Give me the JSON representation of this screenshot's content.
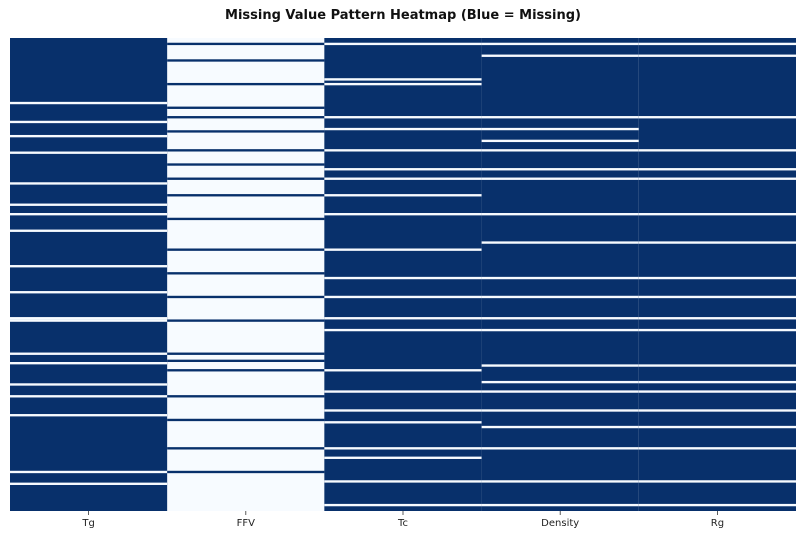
{
  "chart_data": {
    "type": "heatmap",
    "title": "Missing Value Pattern Heatmap (Blue = Missing)",
    "xlabel": "",
    "ylabel": "",
    "columns": [
      "Tg",
      "FFV",
      "Tc",
      "Density",
      "Rg"
    ],
    "rows": 200,
    "legend": "none",
    "colors": {
      "missing": "#08306b",
      "present": "#f7fbff"
    },
    "present_runs": [
      {
        "col": 0,
        "rows": [
          [
            27,
            27
          ],
          [
            35,
            35
          ],
          [
            41,
            41
          ],
          [
            48,
            48
          ],
          [
            61,
            61
          ],
          [
            70,
            70
          ],
          [
            74,
            74
          ],
          [
            81,
            81
          ],
          [
            96,
            96
          ],
          [
            107,
            107
          ],
          [
            118,
            118
          ],
          [
            119,
            119
          ],
          [
            133,
            133
          ],
          [
            137,
            137
          ],
          [
            146,
            146
          ],
          [
            151,
            151
          ],
          [
            159,
            159
          ],
          [
            183,
            183
          ],
          [
            188,
            188
          ]
        ]
      },
      {
        "col": 1,
        "rows": [
          [
            0,
            1
          ],
          [
            3,
            8
          ],
          [
            10,
            18
          ],
          [
            20,
            28
          ],
          [
            30,
            32
          ],
          [
            34,
            38
          ],
          [
            40,
            46
          ],
          [
            48,
            52
          ],
          [
            54,
            58
          ],
          [
            60,
            65
          ],
          [
            67,
            75
          ],
          [
            77,
            88
          ],
          [
            90,
            98
          ],
          [
            100,
            108
          ],
          [
            110,
            118
          ],
          [
            120,
            132
          ],
          [
            134,
            135
          ],
          [
            137,
            139
          ],
          [
            141,
            150
          ],
          [
            152,
            160
          ],
          [
            162,
            172
          ],
          [
            174,
            182
          ],
          [
            184,
            199
          ]
        ]
      },
      {
        "col": 2,
        "rows": [
          [
            2,
            2
          ],
          [
            17,
            17
          ],
          [
            19,
            19
          ],
          [
            33,
            33
          ],
          [
            38,
            38
          ],
          [
            47,
            47
          ],
          [
            55,
            55
          ],
          [
            59,
            59
          ],
          [
            66,
            66
          ],
          [
            74,
            74
          ],
          [
            89,
            89
          ],
          [
            101,
            101
          ],
          [
            109,
            109
          ],
          [
            118,
            118
          ],
          [
            123,
            123
          ],
          [
            140,
            140
          ],
          [
            149,
            149
          ],
          [
            157,
            157
          ],
          [
            162,
            162
          ],
          [
            173,
            173
          ],
          [
            177,
            177
          ],
          [
            187,
            187
          ],
          [
            197,
            197
          ]
        ]
      },
      {
        "col": 3,
        "rows": [
          [
            2,
            2
          ],
          [
            7,
            7
          ],
          [
            33,
            33
          ],
          [
            38,
            38
          ],
          [
            43,
            43
          ],
          [
            47,
            47
          ],
          [
            55,
            55
          ],
          [
            59,
            59
          ],
          [
            74,
            74
          ],
          [
            86,
            86
          ],
          [
            101,
            101
          ],
          [
            109,
            109
          ],
          [
            118,
            118
          ],
          [
            123,
            123
          ],
          [
            138,
            138
          ],
          [
            145,
            145
          ],
          [
            149,
            149
          ],
          [
            157,
            157
          ],
          [
            164,
            164
          ],
          [
            173,
            173
          ],
          [
            187,
            187
          ],
          [
            197,
            197
          ]
        ]
      },
      {
        "col": 4,
        "rows": [
          [
            2,
            2
          ],
          [
            7,
            7
          ],
          [
            33,
            33
          ],
          [
            47,
            47
          ],
          [
            55,
            55
          ],
          [
            59,
            59
          ],
          [
            74,
            74
          ],
          [
            86,
            86
          ],
          [
            101,
            101
          ],
          [
            109,
            109
          ],
          [
            118,
            118
          ],
          [
            123,
            123
          ],
          [
            138,
            138
          ],
          [
            145,
            145
          ],
          [
            149,
            149
          ],
          [
            157,
            157
          ],
          [
            164,
            164
          ],
          [
            173,
            173
          ],
          [
            187,
            187
          ],
          [
            197,
            197
          ]
        ]
      }
    ]
  }
}
